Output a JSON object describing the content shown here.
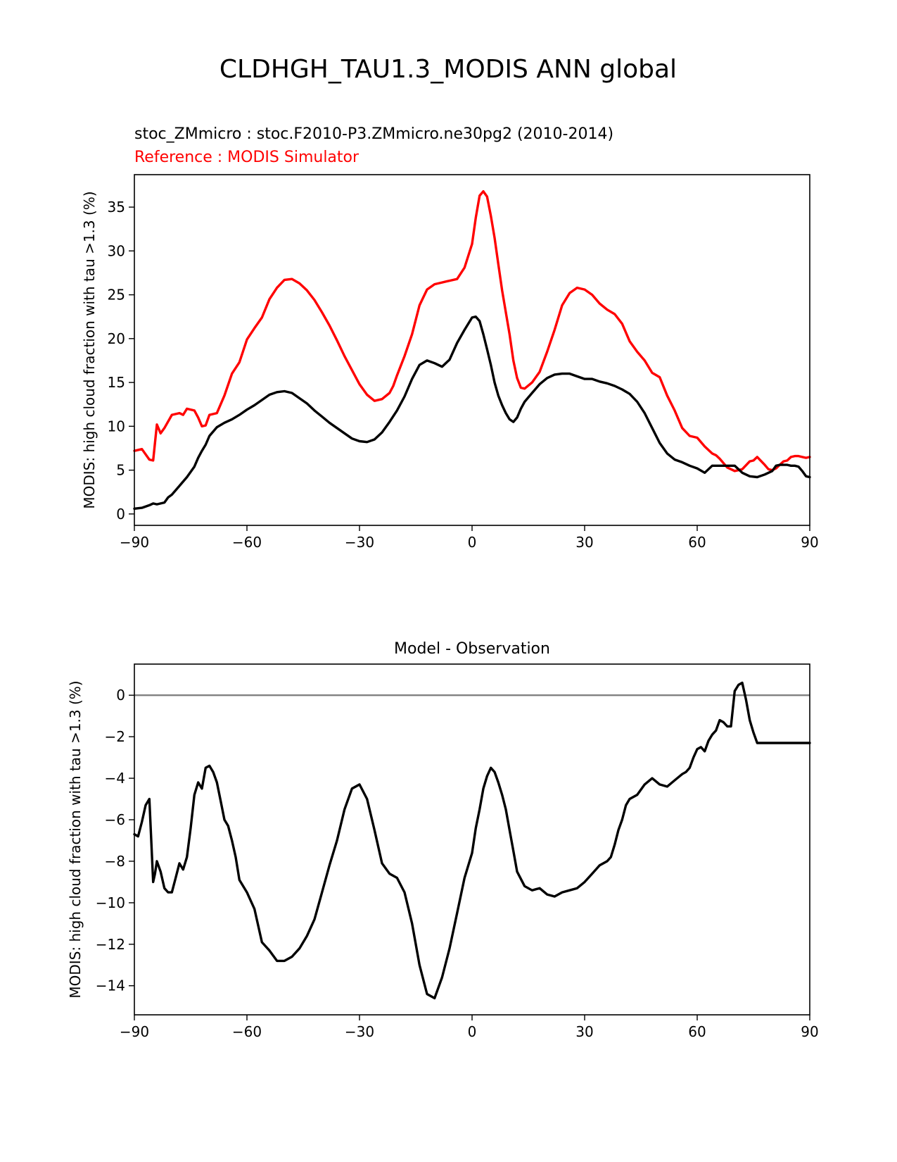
{
  "figure_title": "CLDHGH_TAU1.3_MODIS ANN global",
  "colors": {
    "test": "#000000",
    "reference": "#ff0000",
    "zero_line": "#808080"
  },
  "chart_data": [
    {
      "type": "line",
      "title_left_1": "stoc_ZMmicro : stoc.F2010-P3.ZMmicro.ne30pg2 (2010-2014)",
      "title_left_2": "Reference : MODIS Simulator",
      "xlabel": "",
      "ylabel": "MODIS: high cloud fraction with tau >1.3 (%)",
      "xlim": [
        -90,
        90
      ],
      "ylim": [
        -1.3,
        38.7
      ],
      "xticks": [
        -90,
        -60,
        -30,
        0,
        30,
        60,
        90
      ],
      "xtick_labels": [
        "−90",
        "−60",
        "−30",
        "0",
        "30",
        "60",
        "90"
      ],
      "yticks": [
        0,
        5,
        10,
        15,
        20,
        25,
        30,
        35
      ],
      "ytick_labels": [
        "0",
        "5",
        "10",
        "15",
        "20",
        "25",
        "30",
        "35"
      ],
      "series": [
        {
          "role": "reference",
          "color": "#ff0000",
          "x": [
            -90,
            -88,
            -86,
            -85,
            -84,
            -83,
            -82,
            -80,
            -78,
            -77,
            -76,
            -74,
            -73,
            -72,
            -71,
            -70,
            -68,
            -66,
            -64,
            -62,
            -60,
            -58,
            -56,
            -54,
            -52,
            -50,
            -48,
            -46,
            -44,
            -42,
            -40,
            -38,
            -36,
            -34,
            -32,
            -30,
            -28,
            -26,
            -24,
            -22,
            -21,
            -20,
            -18,
            -16,
            -14,
            -12,
            -10,
            -8,
            -6,
            -4,
            -2,
            0,
            1,
            2,
            3,
            4,
            5,
            6,
            7,
            8,
            9,
            10,
            11,
            12,
            13,
            14,
            16,
            18,
            20,
            22,
            24,
            26,
            28,
            30,
            32,
            34,
            36,
            38,
            40,
            42,
            44,
            46,
            48,
            50,
            52,
            54,
            56,
            58,
            60,
            62,
            64,
            65,
            66,
            68,
            70,
            72,
            74,
            75,
            76,
            78,
            79,
            80,
            81,
            82,
            83,
            84,
            85,
            86,
            87,
            88,
            89,
            90
          ],
          "values": [
            7.2,
            7.4,
            6.2,
            6.1,
            10.2,
            9.2,
            9.8,
            11.3,
            11.5,
            11.3,
            12.0,
            11.8,
            11.0,
            10.0,
            10.1,
            11.3,
            11.5,
            13.5,
            16.0,
            17.3,
            19.9,
            21.2,
            22.4,
            24.5,
            25.8,
            26.7,
            26.8,
            26.3,
            25.5,
            24.4,
            23.0,
            21.5,
            19.8,
            18.0,
            16.4,
            14.8,
            13.6,
            12.9,
            13.1,
            13.8,
            14.6,
            15.8,
            18.0,
            20.5,
            23.8,
            25.6,
            26.2,
            26.4,
            26.6,
            26.8,
            28.1,
            30.8,
            33.8,
            36.3,
            36.8,
            36.2,
            34.0,
            31.5,
            28.5,
            25.5,
            23.0,
            20.5,
            17.5,
            15.5,
            14.4,
            14.3,
            15.0,
            16.2,
            18.5,
            21.0,
            23.8,
            25.2,
            25.8,
            25.6,
            25.0,
            24.0,
            23.3,
            22.8,
            21.7,
            19.7,
            18.5,
            17.5,
            16.1,
            15.6,
            13.5,
            11.8,
            9.8,
            8.9,
            8.7,
            7.7,
            6.9,
            6.7,
            6.3,
            5.3,
            4.9,
            5.1,
            6.0,
            6.1,
            6.5,
            5.6,
            5.1,
            5.0,
            5.2,
            5.6,
            6.0,
            6.1,
            6.5,
            6.6,
            6.6,
            6.5,
            6.4,
            6.5
          ]
        },
        {
          "role": "test",
          "color": "#000000",
          "x": [
            -90,
            -88,
            -86,
            -85,
            -84,
            -83,
            -82,
            -81,
            -80,
            -78,
            -76,
            -74,
            -73,
            -72,
            -71,
            -70,
            -68,
            -66,
            -64,
            -62,
            -60,
            -58,
            -56,
            -54,
            -52,
            -50,
            -48,
            -46,
            -44,
            -42,
            -40,
            -38,
            -36,
            -34,
            -32,
            -30,
            -28,
            -26,
            -24,
            -22,
            -20,
            -18,
            -16,
            -14,
            -12,
            -10,
            -8,
            -6,
            -4,
            -2,
            0,
            1,
            2,
            3,
            4,
            5,
            6,
            7,
            8,
            9,
            10,
            11,
            12,
            13,
            14,
            16,
            18,
            20,
            22,
            24,
            26,
            28,
            30,
            32,
            34,
            36,
            38,
            40,
            42,
            44,
            46,
            48,
            50,
            52,
            54,
            56,
            58,
            60,
            62,
            64,
            66,
            68,
            70,
            72,
            74,
            76,
            78,
            80,
            81,
            82,
            83,
            84,
            85,
            86,
            87,
            88,
            89,
            90
          ],
          "values": [
            0.6,
            0.7,
            1.0,
            1.2,
            1.1,
            1.2,
            1.3,
            1.9,
            2.2,
            3.2,
            4.2,
            5.4,
            6.4,
            7.2,
            7.9,
            8.9,
            9.9,
            10.4,
            10.8,
            11.3,
            11.9,
            12.4,
            13.0,
            13.6,
            13.9,
            14.0,
            13.8,
            13.2,
            12.6,
            11.8,
            11.1,
            10.4,
            9.8,
            9.2,
            8.6,
            8.3,
            8.2,
            8.5,
            9.3,
            10.5,
            11.8,
            13.4,
            15.4,
            17.0,
            17.5,
            17.2,
            16.8,
            17.6,
            19.5,
            21.0,
            22.4,
            22.5,
            22.0,
            20.5,
            18.8,
            17.0,
            15.0,
            13.5,
            12.4,
            11.5,
            10.8,
            10.5,
            11.0,
            12.0,
            12.8,
            13.8,
            14.8,
            15.5,
            15.9,
            16.0,
            16.0,
            15.7,
            15.4,
            15.4,
            15.1,
            14.9,
            14.6,
            14.2,
            13.7,
            12.8,
            11.5,
            9.8,
            8.1,
            6.9,
            6.2,
            5.9,
            5.5,
            5.2,
            4.7,
            5.5,
            5.5,
            5.5,
            5.5,
            4.7,
            4.3,
            4.2,
            4.5,
            4.9,
            5.5,
            5.6,
            5.6,
            5.6,
            5.5,
            5.5,
            5.4,
            4.9,
            4.3,
            4.2
          ]
        }
      ]
    },
    {
      "type": "line",
      "title": "Model - Observation",
      "xlabel": "",
      "ylabel": "MODIS: high cloud fraction with tau >1.3 (%)",
      "xlim": [
        -90,
        90
      ],
      "ylim": [
        -15.4,
        1.5
      ],
      "xticks": [
        -90,
        -60,
        -30,
        0,
        30,
        60,
        90
      ],
      "xtick_labels": [
        "−90",
        "−60",
        "−30",
        "0",
        "30",
        "60",
        "90"
      ],
      "yticks": [
        0,
        -2,
        -4,
        -6,
        -8,
        -10,
        -12,
        -14
      ],
      "ytick_labels": [
        "0",
        "−2",
        "−4",
        "−6",
        "−8",
        "−10",
        "−12",
        "−14"
      ],
      "zero_line": 0,
      "series": [
        {
          "role": "difference",
          "color": "#000000",
          "x": [
            -90,
            -89,
            -88,
            -87,
            -86,
            -85,
            -84.5,
            -84,
            -83,
            -82,
            -81,
            -80,
            -79,
            -78,
            -77,
            -76,
            -75,
            -74,
            -73,
            -72,
            -71,
            -70,
            -69,
            -68,
            -67,
            -66,
            -65,
            -64,
            -63,
            -62,
            -60,
            -58,
            -56,
            -54,
            -52,
            -50,
            -48,
            -46,
            -44,
            -42,
            -40,
            -38,
            -36,
            -34,
            -32,
            -30,
            -28,
            -26,
            -24,
            -22,
            -20,
            -18,
            -16,
            -14,
            -12,
            -10,
            -8,
            -6,
            -4,
            -2,
            0,
            1,
            2,
            3,
            4,
            5,
            6,
            7,
            8,
            9,
            10,
            11,
            12,
            14,
            16,
            18,
            20,
            22,
            24,
            26,
            28,
            30,
            32,
            34,
            36,
            37,
            38,
            39,
            40,
            41,
            42,
            44,
            46,
            48,
            50,
            52,
            54,
            56,
            57,
            58,
            59,
            60,
            61,
            62,
            63,
            64,
            65,
            66,
            67,
            68,
            69,
            70,
            71,
            72,
            73,
            74,
            75,
            76,
            77,
            78,
            79,
            80,
            81,
            82,
            83,
            84,
            85,
            86,
            87,
            88,
            89,
            90
          ],
          "values": [
            -6.7,
            -6.8,
            -6.1,
            -5.3,
            -5.0,
            -9.0,
            -8.6,
            -8.0,
            -8.5,
            -9.3,
            -9.5,
            -9.5,
            -8.8,
            -8.1,
            -8.4,
            -7.8,
            -6.4,
            -4.8,
            -4.2,
            -4.5,
            -3.5,
            -3.4,
            -3.7,
            -4.2,
            -5.1,
            -6.0,
            -6.3,
            -7.0,
            -7.8,
            -8.9,
            -9.5,
            -10.3,
            -11.9,
            -12.3,
            -12.8,
            -12.8,
            -12.6,
            -12.2,
            -11.6,
            -10.8,
            -9.5,
            -8.2,
            -7.0,
            -5.5,
            -4.5,
            -4.3,
            -5.0,
            -6.5,
            -8.1,
            -8.6,
            -8.8,
            -9.5,
            -11.0,
            -13.0,
            -14.4,
            -14.6,
            -13.6,
            -12.2,
            -10.5,
            -8.8,
            -7.6,
            -6.4,
            -5.5,
            -4.5,
            -3.9,
            -3.5,
            -3.7,
            -4.2,
            -4.8,
            -5.5,
            -6.5,
            -7.5,
            -8.5,
            -9.2,
            -9.4,
            -9.3,
            -9.6,
            -9.7,
            -9.5,
            -9.4,
            -9.3,
            -9.0,
            -8.6,
            -8.2,
            -8.0,
            -7.8,
            -7.2,
            -6.5,
            -6.0,
            -5.3,
            -5.0,
            -4.8,
            -4.3,
            -4.0,
            -4.3,
            -4.4,
            -4.1,
            -3.8,
            -3.7,
            -3.5,
            -3.0,
            -2.6,
            -2.5,
            -2.7,
            -2.2,
            -1.9,
            -1.7,
            -1.2,
            -1.3,
            -1.5,
            -1.5,
            0.2,
            0.5,
            0.6,
            -0.2,
            -1.2,
            -1.8,
            -2.3,
            -2.3,
            -2.3,
            -2.3,
            -2.3,
            -2.3,
            -2.3,
            -2.3,
            -2.3,
            -2.3,
            -2.3,
            -2.3,
            -2.3,
            -2.3,
            -2.3
          ]
        }
      ]
    }
  ]
}
